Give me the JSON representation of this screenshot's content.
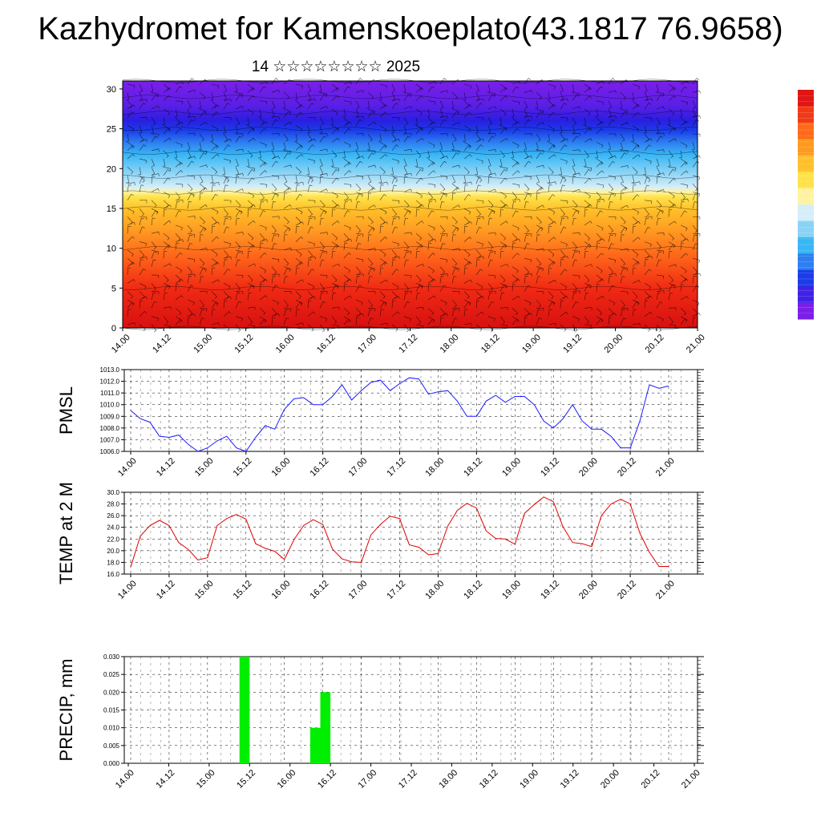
{
  "title": "Kazhydromet for Kamenskoeplato(43.1817 76.9658)",
  "subtitle": "14 ☆☆☆☆☆☆☆☆ 2025",
  "colorbar": {
    "colors": [
      "#7B1FE8",
      "#3F22E6",
      "#1B3CE8",
      "#2E7FF0",
      "#39B7F5",
      "#8AD3F5",
      "#D6EEF8",
      "#FFF3A0",
      "#FFE24A",
      "#FFC02A",
      "#FF9A20",
      "#FF6A1A",
      "#F03A17",
      "#E01515"
    ]
  },
  "x_ticks": [
    "14.00",
    "14.12",
    "15.00",
    "15.12",
    "16.00",
    "16.12",
    "17.00",
    "17.12",
    "18.00",
    "18.12",
    "19.00",
    "19.12",
    "20.00",
    "20.12",
    "21.00"
  ],
  "chart_data": [
    {
      "type": "heatmap",
      "ylim": [
        0,
        31
      ],
      "yticks": [
        0,
        5,
        10,
        15,
        20,
        25,
        30
      ],
      "note_levels_y": [
        0,
        5,
        10,
        15,
        17,
        19,
        22,
        25,
        27,
        29,
        31
      ]
    },
    {
      "type": "line",
      "ylabel": "PMSL",
      "ylim": [
        1006.0,
        1013.0
      ],
      "yticks": [
        "1006.0",
        "1007.0",
        "1008.0",
        "1009.0",
        "1010.0",
        "1011.0",
        "1012.0",
        "1013.0"
      ],
      "color": "#1a1aff",
      "values": [
        1009.5,
        1008.8,
        1008.5,
        1007.3,
        1007.2,
        1007.4,
        1006.6,
        1006.0,
        1006.3,
        1006.9,
        1007.3,
        1006.3,
        1006.0,
        1007.2,
        1008.2,
        1007.9,
        1009.6,
        1010.5,
        1010.6,
        1010.0,
        1010.0,
        1010.7,
        1011.7,
        1010.4,
        1011.2,
        1011.9,
        1012.1,
        1011.2,
        1011.8,
        1012.3,
        1012.2,
        1010.9,
        1011.1,
        1011.2,
        1010.3,
        1009.0,
        1009.0,
        1010.3,
        1010.8,
        1010.2,
        1010.7,
        1010.7,
        1010.0,
        1008.6,
        1008.0,
        1008.8,
        1010.0,
        1008.6,
        1007.9,
        1007.9,
        1007.3,
        1006.3,
        1006.3,
        1008.6,
        1011.7,
        1011.4,
        1011.6
      ]
    },
    {
      "type": "line",
      "ylabel": "TEMP at 2 M",
      "ylim": [
        16.0,
        30.0
      ],
      "yticks": [
        "16.0",
        "18.0",
        "20.0",
        "22.0",
        "24.0",
        "26.0",
        "28.0",
        "30.0"
      ],
      "color": "#e00000",
      "values": [
        17.2,
        22.5,
        24.3,
        25.2,
        24.3,
        21.4,
        20.2,
        18.4,
        18.8,
        24.3,
        25.5,
        26.2,
        25.4,
        21.2,
        20.4,
        19.9,
        18.5,
        21.9,
        24.3,
        25.3,
        24.5,
        20.3,
        18.6,
        18.1,
        18.0,
        22.7,
        24.5,
        25.9,
        25.5,
        21.0,
        20.6,
        19.3,
        19.5,
        24.2,
        26.9,
        28.1,
        27.3,
        23.4,
        22.1,
        22.0,
        21.1,
        26.4,
        27.9,
        29.2,
        28.4,
        24.1,
        21.4,
        21.2,
        20.7,
        26.0,
        28.0,
        28.8,
        28.0,
        23.0,
        19.7,
        17.3,
        17.3
      ]
    },
    {
      "type": "bar",
      "ylabel": "PRECIP, mm",
      "ylim": [
        0,
        0.03
      ],
      "yticks": [
        "0.000",
        "0.005",
        "0.010",
        "0.015",
        "0.020",
        "0.025",
        "0.030"
      ],
      "color": "#00ee00",
      "bars": [
        {
          "start_hour": 33,
          "end_hour": 36,
          "value": 0.03
        },
        {
          "start_hour": 54,
          "end_hour": 57,
          "value": 0.01
        },
        {
          "start_hour": 57,
          "end_hour": 60,
          "value": 0.02
        }
      ]
    }
  ]
}
